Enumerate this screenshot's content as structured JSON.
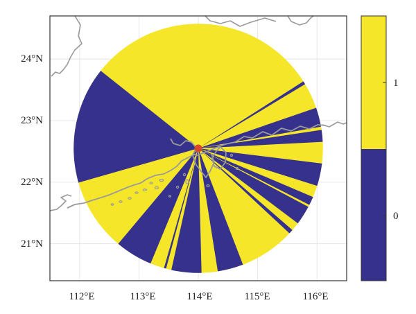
{
  "map": {
    "x_tick_labels": [
      "112°E",
      "113°E",
      "114°E",
      "115°E",
      "116°E"
    ],
    "y_tick_labels": [
      "24°N",
      "23°N",
      "22°N",
      "21°N"
    ],
    "lon_range": [
      111.5,
      116.5
    ],
    "lat_range": [
      20.4,
      24.7
    ],
    "grid": true,
    "site_marker": {
      "lon": 114.0,
      "lat": 22.55,
      "color": "#d9482b"
    },
    "disk_radius_deg": 2.1,
    "coastline_color": "#9a9a9a"
  },
  "colorbar": {
    "tick_labels": [
      "1",
      "0"
    ],
    "colors": {
      "1": "#f5e629",
      "0": "#35318c"
    }
  },
  "chart_data": {
    "type": "heatmap",
    "title": "",
    "xlabel": "",
    "ylabel": "",
    "x_ticks": [
      112,
      113,
      114,
      115,
      116
    ],
    "y_ticks": [
      24,
      23,
      22,
      21
    ],
    "classes": [
      0,
      1
    ],
    "note_sectors": "azimuth sectors in degrees clockwise from north, centered on the site",
    "sectors_value_0": [
      [
        57.5,
        59
      ],
      [
        71,
        80
      ],
      [
        81.5,
        87
      ],
      [
        97,
        107.5
      ],
      [
        113,
        117
      ],
      [
        118,
        127
      ],
      [
        131,
        133
      ],
      [
        159,
        171
      ],
      [
        178.5,
        192.5
      ],
      [
        195,
        196
      ],
      [
        202.5,
        220
      ],
      [
        254,
        308.5
      ]
    ],
    "background_value": 1
  }
}
